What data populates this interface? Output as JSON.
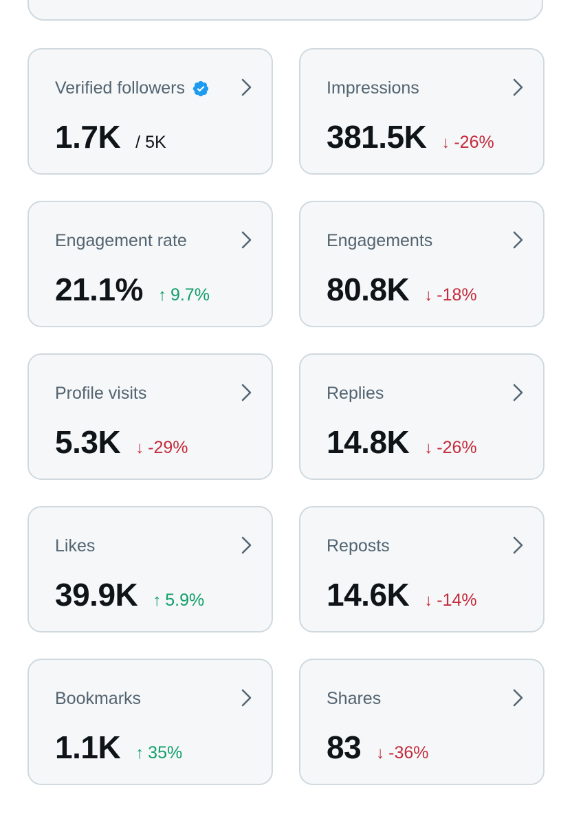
{
  "colors": {
    "card_bg": "#f5f7f8",
    "card_border": "#cfd9de",
    "label": "#536471",
    "value": "#0f1419",
    "negative": "#c42b3c",
    "positive": "#119e69",
    "verified": "#1d9bf0"
  },
  "metrics": [
    {
      "label": "Verified followers",
      "value": "1.7K",
      "suffix": "/ 5K",
      "icon": "verified-badge-icon"
    },
    {
      "label": "Impressions",
      "value": "381.5K",
      "delta": "-26%",
      "direction": "down",
      "arrow": "↓"
    },
    {
      "label": "Engagement rate",
      "value": "21.1%",
      "delta": "9.7%",
      "direction": "up",
      "arrow": "↑"
    },
    {
      "label": "Engagements",
      "value": "80.8K",
      "delta": "-18%",
      "direction": "down",
      "arrow": "↓"
    },
    {
      "label": "Profile visits",
      "value": "5.3K",
      "delta": "-29%",
      "direction": "down",
      "arrow": "↓"
    },
    {
      "label": "Replies",
      "value": "14.8K",
      "delta": "-26%",
      "direction": "down",
      "arrow": "↓"
    },
    {
      "label": "Likes",
      "value": "39.9K",
      "delta": "5.9%",
      "direction": "up",
      "arrow": "↑"
    },
    {
      "label": "Reposts",
      "value": "14.6K",
      "delta": "-14%",
      "direction": "down",
      "arrow": "↓"
    },
    {
      "label": "Bookmarks",
      "value": "1.1K",
      "delta": "35%",
      "direction": "up",
      "arrow": "↑"
    },
    {
      "label": "Shares",
      "value": "83",
      "delta": "-36%",
      "direction": "down",
      "arrow": "↓"
    }
  ]
}
